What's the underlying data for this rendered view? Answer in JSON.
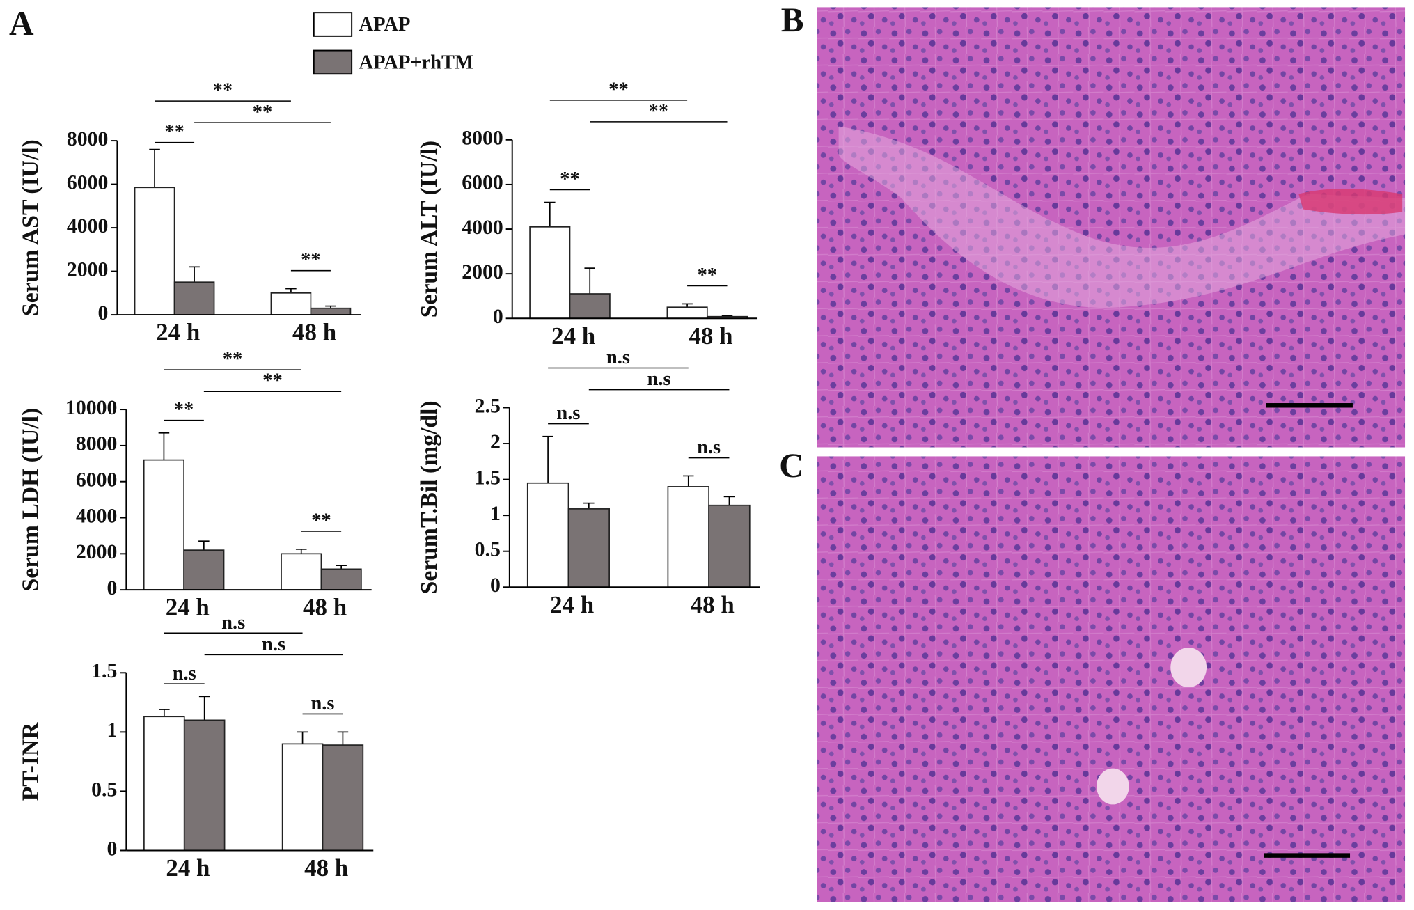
{
  "panels": [
    "A",
    "B",
    "C"
  ],
  "legend": [
    {
      "name": "APAP",
      "color": "#ffffff"
    },
    {
      "name": "APAP+rhTM",
      "color": "#7a7374"
    }
  ],
  "chart_data": [
    {
      "type": "bar",
      "y_label": "Serum AST (IU/l)",
      "categories": [
        "24 h",
        "48 h"
      ],
      "series": [
        {
          "values": [
            5850,
            1000
          ],
          "errors": [
            1750,
            200
          ]
        },
        {
          "values": [
            1500,
            300
          ],
          "errors": [
            700,
            100
          ]
        }
      ],
      "ylim": [
        0,
        8000
      ],
      "yticks": [
        0,
        2000,
        4000,
        6000,
        8000
      ],
      "annotations": [
        "**",
        "**",
        "**",
        "**"
      ]
    },
    {
      "type": "bar",
      "y_label": "Serum ALT (IU/l)",
      "categories": [
        "24 h",
        "48 h"
      ],
      "series": [
        {
          "values": [
            4100,
            500
          ],
          "errors": [
            1100,
            150
          ]
        },
        {
          "values": [
            1100,
            80
          ],
          "errors": [
            1150,
            40
          ]
        }
      ],
      "ylim": [
        0,
        8000
      ],
      "yticks": [
        0,
        2000,
        4000,
        6000,
        8000
      ],
      "annotations": [
        "**",
        "**",
        "**",
        "**"
      ]
    },
    {
      "type": "bar",
      "y_label": "Serum LDH (IU/l)",
      "categories": [
        "24 h",
        "48 h"
      ],
      "series": [
        {
          "values": [
            7200,
            2000
          ],
          "errors": [
            1500,
            250
          ]
        },
        {
          "values": [
            2200,
            1150
          ],
          "errors": [
            500,
            200
          ]
        }
      ],
      "ylim": [
        0,
        10000
      ],
      "yticks": [
        0,
        2000,
        4000,
        6000,
        8000,
        10000
      ],
      "annotations": [
        "**",
        "**",
        "**",
        "**"
      ]
    },
    {
      "type": "bar",
      "y_label": "SerumT.Bil (mg/dl)",
      "categories": [
        "24 h",
        "48 h"
      ],
      "series": [
        {
          "values": [
            1.45,
            1.4
          ],
          "errors": [
            0.65,
            0.15
          ]
        },
        {
          "values": [
            1.09,
            1.14
          ],
          "errors": [
            0.08,
            0.12
          ]
        }
      ],
      "ylim": [
        0,
        2.5
      ],
      "yticks": [
        0,
        0.5,
        1,
        1.5,
        2,
        2.5
      ],
      "annotations": [
        "n.s",
        "n.s",
        "n.s",
        "n.s"
      ]
    },
    {
      "type": "bar",
      "y_label": "PT-INR",
      "categories": [
        "24 h",
        "48 h"
      ],
      "series": [
        {
          "values": [
            1.13,
            0.9
          ],
          "errors": [
            0.06,
            0.1
          ]
        },
        {
          "values": [
            1.1,
            0.89
          ],
          "errors": [
            0.2,
            0.11
          ]
        }
      ],
      "ylim": [
        0,
        1.5
      ],
      "yticks": [
        0,
        0.5,
        1,
        1.5
      ],
      "annotations": [
        "n.s",
        "n.s",
        "n.s",
        "n.s"
      ]
    }
  ]
}
